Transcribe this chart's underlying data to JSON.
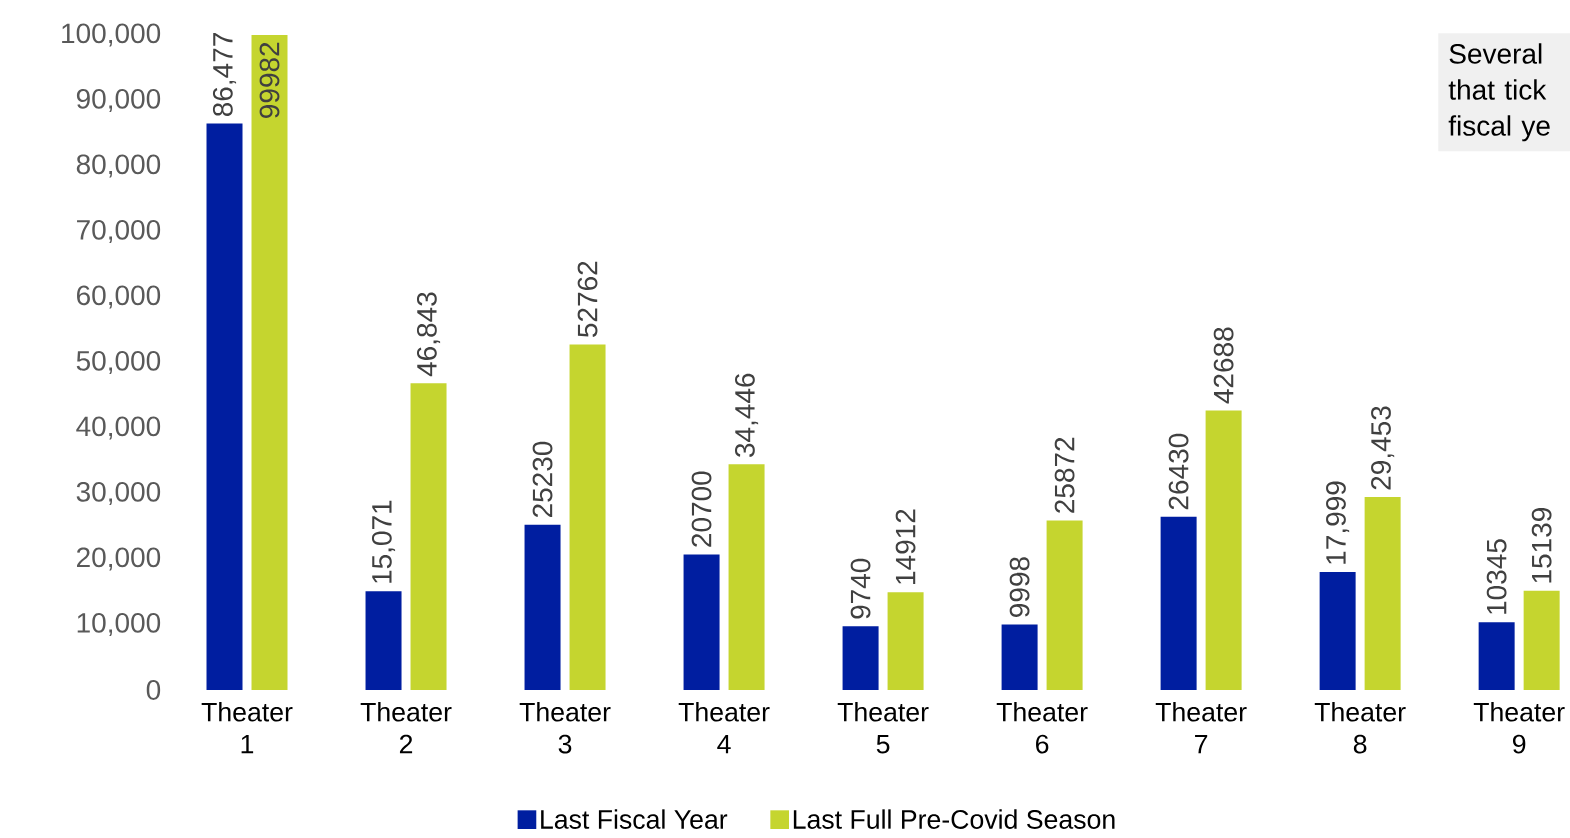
{
  "chart_data": {
    "type": "bar",
    "categories": [
      "Theater 1",
      "Theater 2",
      "Theater 3",
      "Theater 4",
      "Theater 5",
      "Theater 6",
      "Theater 7",
      "Theater 8",
      "Theater 9"
    ],
    "series": [
      {
        "name": "Last Fiscal Year",
        "color": "#001ea0",
        "values": [
          86477,
          15071,
          25230,
          20700,
          9740,
          9998,
          26430,
          17999,
          10345
        ],
        "value_labels": [
          "86,477",
          "15,071",
          "25230",
          "20700",
          "9740",
          "9998",
          "26430",
          "17,999",
          "10345"
        ]
      },
      {
        "name": "Last Full Pre-Covid Season",
        "color": "#c5d52f",
        "values": [
          99982,
          46843,
          52762,
          34446,
          14912,
          25872,
          42688,
          29453,
          15139
        ],
        "value_labels": [
          "99982",
          "46,843",
          "52762",
          "34,446",
          "14912",
          "25872",
          "42688",
          "29,453",
          "15139"
        ]
      }
    ],
    "ylim": [
      0,
      100000
    ],
    "yticks": [
      {
        "value": 0,
        "label": "0"
      },
      {
        "value": 10000,
        "label": "10,000"
      },
      {
        "value": 20000,
        "label": "20,000"
      },
      {
        "value": 30000,
        "label": "30,000"
      },
      {
        "value": 40000,
        "label": "40,000"
      },
      {
        "value": 50000,
        "label": "50,000"
      },
      {
        "value": 60000,
        "label": "60,000"
      },
      {
        "value": 70000,
        "label": "70,000"
      },
      {
        "value": 80000,
        "label": "80,000"
      },
      {
        "value": 90000,
        "label": "90,000"
      },
      {
        "value": 100000,
        "label": "100,000"
      }
    ],
    "legend": "bottom",
    "annotations": [
      "Several that tick fiscal ye"
    ]
  }
}
